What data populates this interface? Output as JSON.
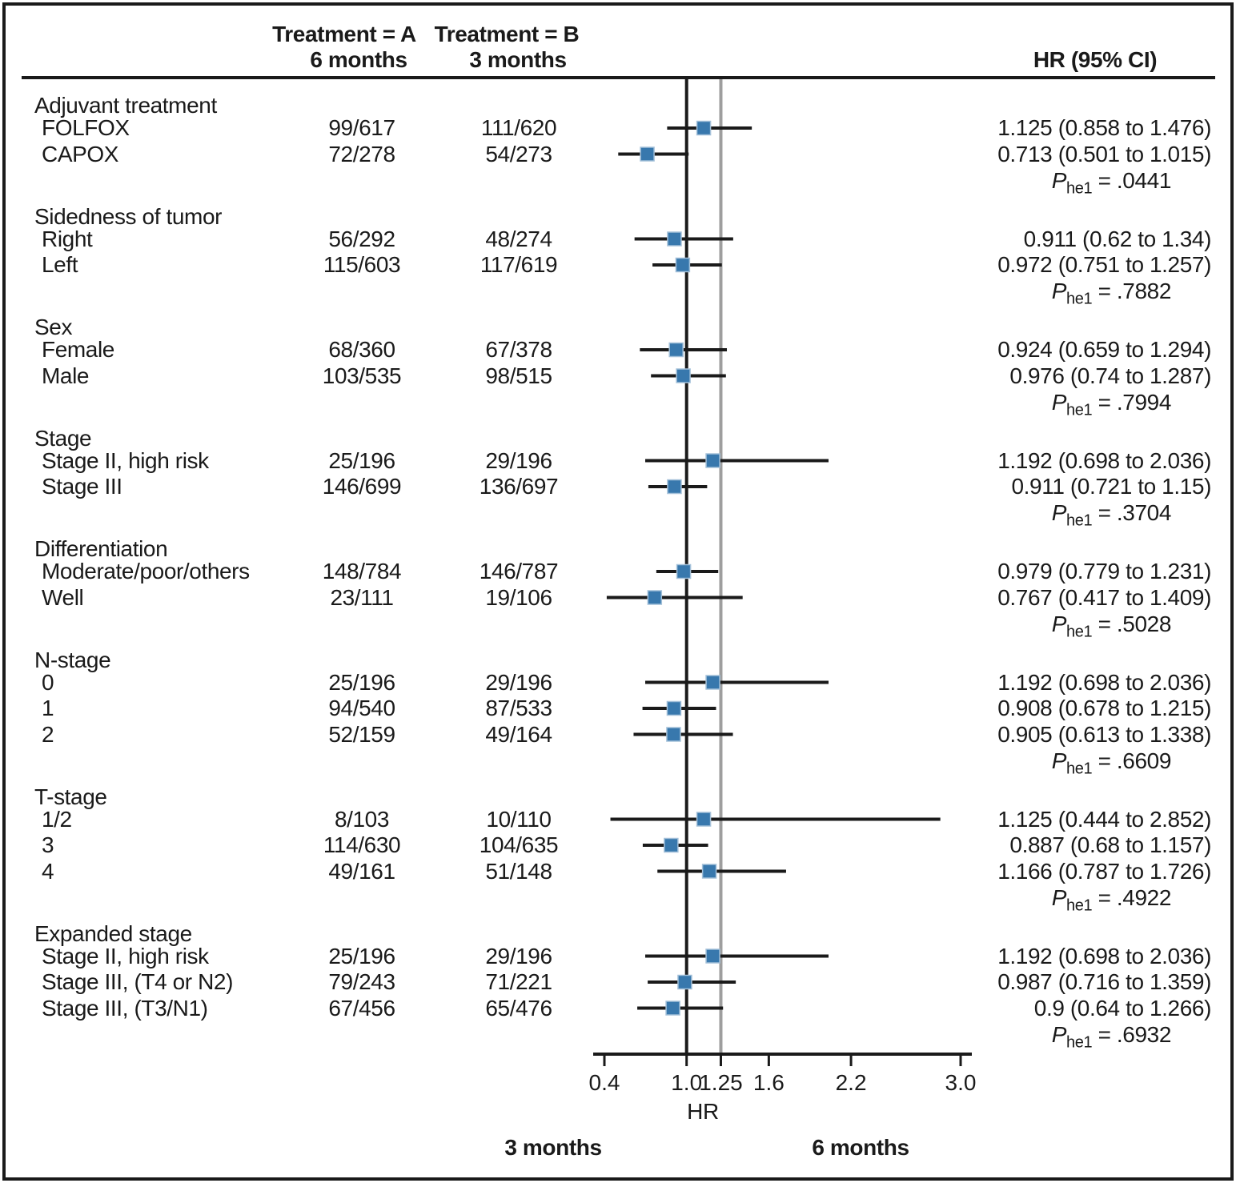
{
  "figure": {
    "header": {
      "treatment_a": "Treatment = A",
      "treatment_b": "Treatment = B",
      "col_a_sub": "6 months",
      "col_b_sub": "3 months",
      "hr_ci": "HR (95% CI)"
    },
    "p_label": "P",
    "p_sub": "he1",
    "p_eq": "=",
    "axis": {
      "label": "HR",
      "tick_values": [
        0.4,
        1.0,
        1.25,
        1.6,
        2.2,
        3.0
      ],
      "tick_labels": [
        "0.4",
        "1.0",
        "1.25",
        "1.6",
        "2.2",
        "3.0"
      ],
      "min": 0.4,
      "max": 3.0,
      "ref_line_solid": 1.0,
      "ref_line_gray": 1.25,
      "left_direction_label": "3 months",
      "right_direction_label": "6 months"
    },
    "colors": {
      "marker_fill": "#3878ad",
      "marker_edge": "#a3c0d9",
      "line_black": "#1a1a1a",
      "ref_gray": "#9e9e9e"
    }
  },
  "chart_data": {
    "type": "forest",
    "x_axis": {
      "label": "HR",
      "scale": "linear",
      "range": [
        0.4,
        3.0
      ],
      "ticks": [
        0.4,
        1.0,
        1.25,
        1.6,
        2.2,
        3.0
      ],
      "reference_lines": [
        1.0,
        1.25
      ]
    },
    "groups": [
      {
        "label": "Adjuvant treatment",
        "p_he1": ".0441",
        "items": [
          {
            "label": "FOLFOX",
            "a": "99/617",
            "b": "111/620",
            "hr": 1.125,
            "lo": 0.858,
            "hi": 1.476,
            "ci_text": "1.125 (0.858 to 1.476)"
          },
          {
            "label": "CAPOX",
            "a": "72/278",
            "b": "54/273",
            "hr": 0.713,
            "lo": 0.501,
            "hi": 1.015,
            "ci_text": "0.713 (0.501 to 1.015)"
          }
        ]
      },
      {
        "label": "Sidedness of tumor",
        "p_he1": ".7882",
        "items": [
          {
            "label": "Right",
            "a": "56/292",
            "b": "48/274",
            "hr": 0.911,
            "lo": 0.62,
            "hi": 1.34,
            "ci_text": "0.911 (0.62 to 1.34)"
          },
          {
            "label": "Left",
            "a": "115/603",
            "b": "117/619",
            "hr": 0.972,
            "lo": 0.751,
            "hi": 1.257,
            "ci_text": "0.972 (0.751 to 1.257)"
          }
        ]
      },
      {
        "label": "Sex",
        "p_he1": ".7994",
        "items": [
          {
            "label": "Female",
            "a": "68/360",
            "b": "67/378",
            "hr": 0.924,
            "lo": 0.659,
            "hi": 1.294,
            "ci_text": "0.924 (0.659 to 1.294)"
          },
          {
            "label": "Male",
            "a": "103/535",
            "b": "98/515",
            "hr": 0.976,
            "lo": 0.74,
            "hi": 1.287,
            "ci_text": "0.976 (0.74 to 1.287)"
          }
        ]
      },
      {
        "label": "Stage",
        "p_he1": ".3704",
        "items": [
          {
            "label": "Stage II, high risk",
            "a": "25/196",
            "b": "29/196",
            "hr": 1.192,
            "lo": 0.698,
            "hi": 2.036,
            "ci_text": "1.192 (0.698 to 2.036)"
          },
          {
            "label": "Stage III",
            "a": "146/699",
            "b": "136/697",
            "hr": 0.911,
            "lo": 0.721,
            "hi": 1.15,
            "ci_text": "0.911 (0.721 to 1.15)"
          }
        ]
      },
      {
        "label": "Differentiation",
        "p_he1": ".5028",
        "items": [
          {
            "label": "Moderate/poor/others",
            "a": "148/784",
            "b": "146/787",
            "hr": 0.979,
            "lo": 0.779,
            "hi": 1.231,
            "ci_text": "0.979 (0.779 to 1.231)"
          },
          {
            "label": "Well",
            "a": "23/111",
            "b": "19/106",
            "hr": 0.767,
            "lo": 0.417,
            "hi": 1.409,
            "ci_text": "0.767 (0.417 to 1.409)"
          }
        ]
      },
      {
        "label": "N-stage",
        "p_he1": ".6609",
        "items": [
          {
            "label": "0",
            "a": "25/196",
            "b": "29/196",
            "hr": 1.192,
            "lo": 0.698,
            "hi": 2.036,
            "ci_text": "1.192 (0.698 to 2.036)"
          },
          {
            "label": "1",
            "a": "94/540",
            "b": "87/533",
            "hr": 0.908,
            "lo": 0.678,
            "hi": 1.215,
            "ci_text": "0.908 (0.678 to 1.215)"
          },
          {
            "label": "2",
            "a": "52/159",
            "b": "49/164",
            "hr": 0.905,
            "lo": 0.613,
            "hi": 1.338,
            "ci_text": "0.905 (0.613 to 1.338)"
          }
        ]
      },
      {
        "label": "T-stage",
        "p_he1": ".4922",
        "items": [
          {
            "label": "1/2",
            "a": "8/103",
            "b": "10/110",
            "hr": 1.125,
            "lo": 0.444,
            "hi": 2.852,
            "ci_text": "1.125 (0.444 to 2.852)"
          },
          {
            "label": "3",
            "a": "114/630",
            "b": "104/635",
            "hr": 0.887,
            "lo": 0.68,
            "hi": 1.157,
            "ci_text": "0.887 (0.68 to 1.157)"
          },
          {
            "label": "4",
            "a": "49/161",
            "b": "51/148",
            "hr": 1.166,
            "lo": 0.787,
            "hi": 1.726,
            "ci_text": "1.166 (0.787 to 1.726)"
          }
        ]
      },
      {
        "label": "Expanded stage",
        "p_he1": ".6932",
        "items": [
          {
            "label": "Stage II, high risk",
            "a": "25/196",
            "b": "29/196",
            "hr": 1.192,
            "lo": 0.698,
            "hi": 2.036,
            "ci_text": "1.192 (0.698 to 2.036)"
          },
          {
            "label": "Stage III, (T4 or N2)",
            "a": "79/243",
            "b": "71/221",
            "hr": 0.987,
            "lo": 0.716,
            "hi": 1.359,
            "ci_text": "0.987 (0.716 to 1.359)"
          },
          {
            "label": "Stage III, (T3/N1)",
            "a": "67/456",
            "b": "65/476",
            "hr": 0.9,
            "lo": 0.64,
            "hi": 1.266,
            "ci_text": "0.9 (0.64 to 1.266)"
          }
        ]
      }
    ]
  }
}
